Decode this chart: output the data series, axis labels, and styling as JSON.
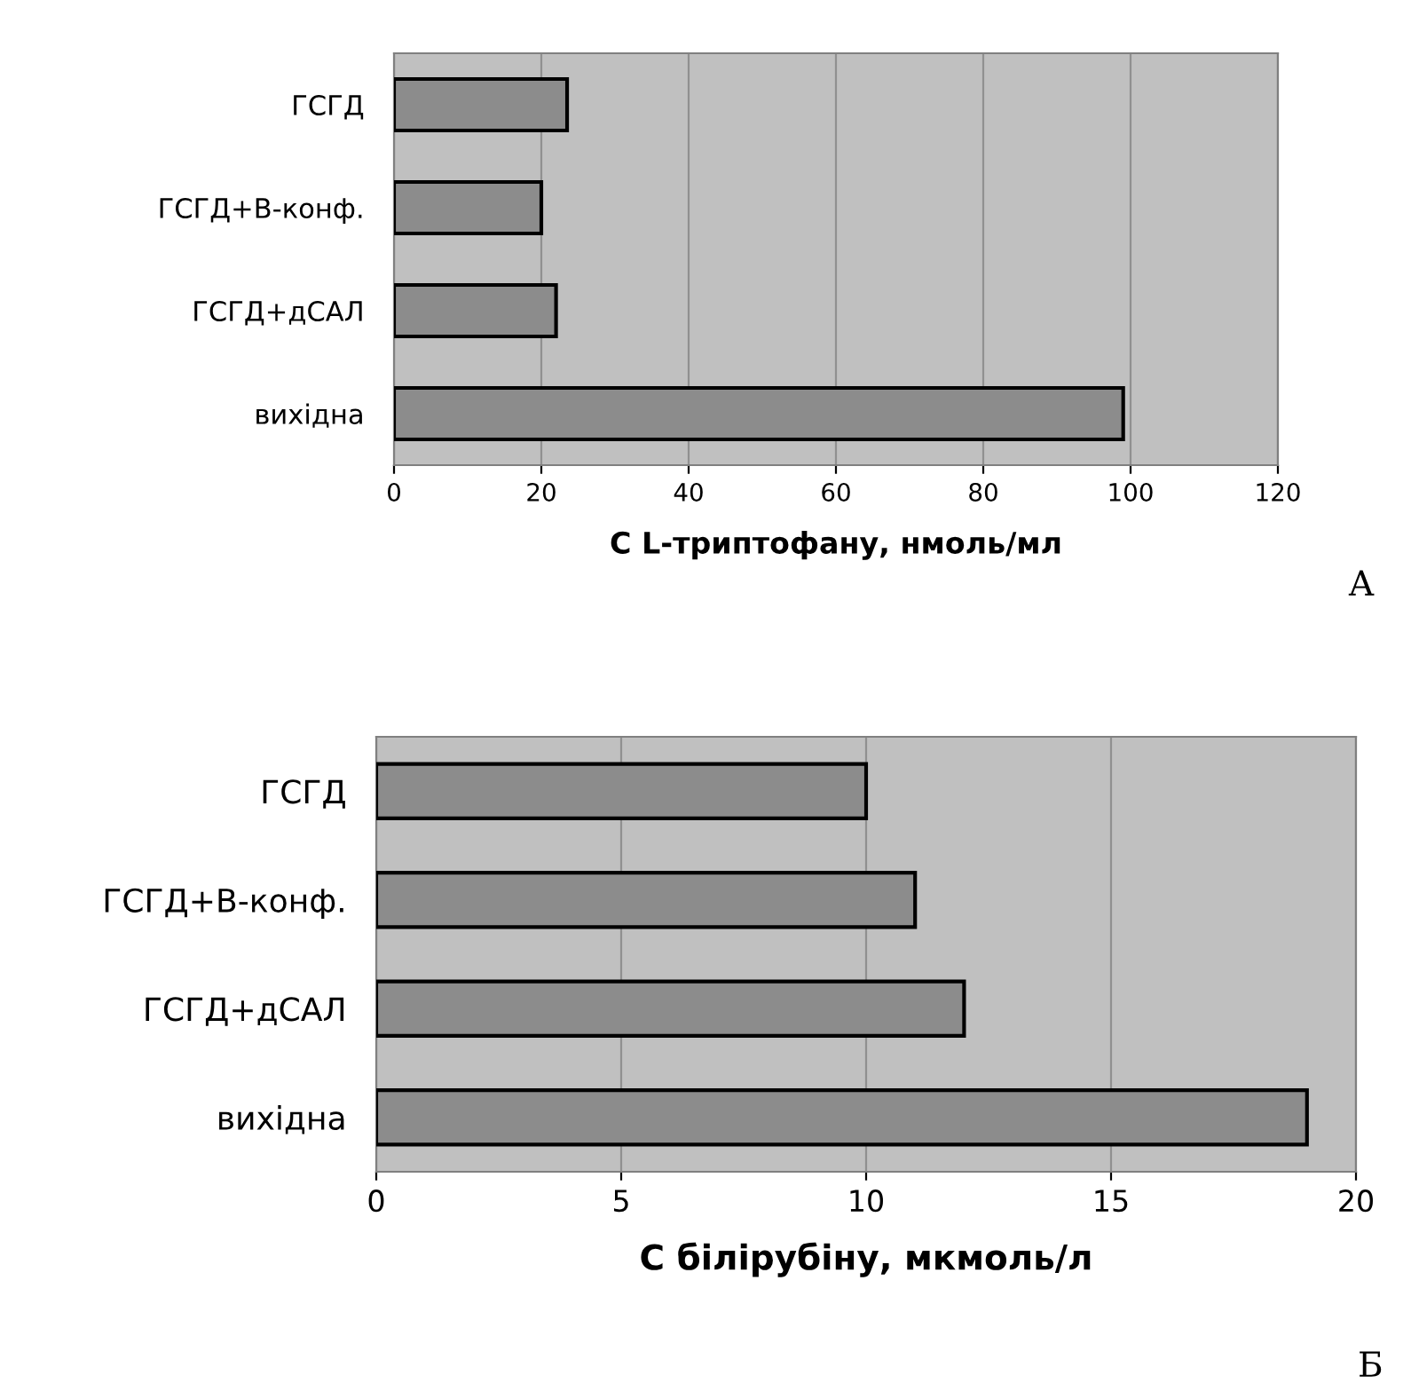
{
  "chart_data": [
    {
      "type": "bar",
      "orientation": "horizontal",
      "xlabel": "C L-триптофану, нмоль/мл",
      "categories": [
        "ГСГД",
        "ГСГД+В-конф.",
        "ГСГД+дСАЛ",
        "вихідна"
      ],
      "values": [
        23.5,
        20,
        22,
        99
      ],
      "color": "#8c8c8c",
      "xlim": [
        0,
        120
      ],
      "xticks": [
        0,
        20,
        40,
        60,
        80,
        100,
        120
      ],
      "grid": "x",
      "legend": false,
      "annotations": [
        "A"
      ]
    },
    {
      "type": "bar",
      "orientation": "horizontal",
      "xlabel": "C білірубіну, мкмоль/л",
      "categories": [
        "ГСГД",
        "ГСГД+В-конф.",
        "ГСГД+дСАЛ",
        "вихідна"
      ],
      "values": [
        10,
        11,
        12,
        19
      ],
      "color": "#8c8c8c",
      "xlim": [
        0,
        20
      ],
      "xticks": [
        0,
        5,
        10,
        15,
        20
      ],
      "grid": "x",
      "legend": false,
      "annotations": [
        "Б"
      ]
    }
  ]
}
